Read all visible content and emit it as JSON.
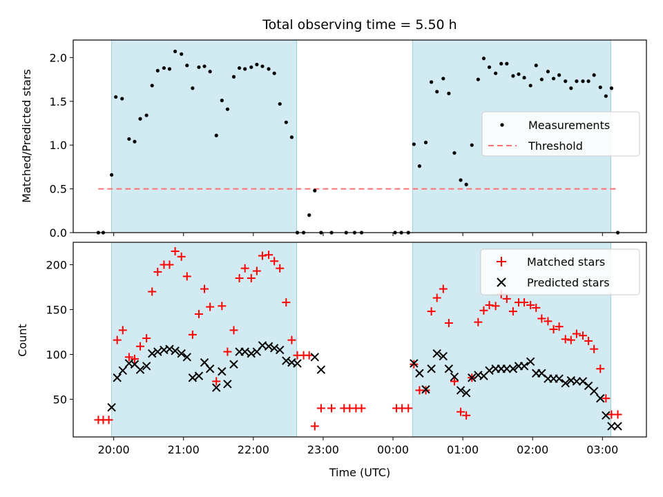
{
  "chart_data": [
    {
      "type": "scatter",
      "panel": "top",
      "title": "Total observing time = 5.50 h",
      "ylabel": "Matched/Predicted stars",
      "xlabel": "",
      "ylim": [
        0,
        2.2
      ],
      "yticks": [
        "0.0",
        "0.5",
        "1.0",
        "1.5",
        "2.0"
      ],
      "ytick_values": [
        0,
        0.5,
        1.0,
        1.5,
        2.0
      ],
      "x_range_hours": [
        19.42,
        27.63
      ],
      "shaded_intervals_hours": [
        [
          19.97,
          22.62
        ],
        [
          24.28,
          27.12
        ]
      ],
      "legend": {
        "placement": "center-right",
        "entries": [
          "Measurements",
          "Threshold"
        ]
      },
      "series": [
        {
          "name": "Measurements",
          "color": "#000000",
          "marker": "dot",
          "x": [
            19.78,
            19.85,
            19.97,
            20.03,
            20.12,
            20.22,
            20.3,
            20.38,
            20.47,
            20.55,
            20.63,
            20.72,
            20.8,
            20.88,
            20.97,
            21.05,
            21.13,
            21.22,
            21.3,
            21.38,
            21.47,
            21.55,
            21.63,
            21.72,
            21.8,
            21.88,
            21.97,
            22.05,
            22.13,
            22.22,
            22.3,
            22.38,
            22.47,
            22.55,
            22.63,
            22.72,
            22.8,
            22.88,
            22.97,
            23.12,
            23.33,
            23.45,
            23.55,
            24.03,
            24.12,
            24.22,
            24.3,
            24.38,
            24.47,
            24.55,
            24.63,
            24.72,
            24.8,
            24.88,
            24.97,
            25.05,
            25.13,
            25.22,
            25.3,
            25.38,
            25.47,
            25.55,
            25.63,
            25.72,
            25.8,
            25.88,
            25.97,
            26.05,
            26.13,
            26.22,
            26.3,
            26.38,
            26.47,
            26.55,
            26.63,
            26.72,
            26.8,
            26.88,
            26.97,
            27.05,
            27.13,
            27.22
          ],
          "y": [
            0.0,
            0.0,
            0.66,
            1.55,
            1.53,
            1.07,
            1.04,
            1.3,
            1.34,
            1.68,
            1.85,
            1.88,
            1.87,
            2.07,
            2.04,
            1.91,
            1.65,
            1.89,
            1.9,
            1.84,
            1.11,
            1.51,
            1.41,
            1.78,
            1.88,
            1.87,
            1.89,
            1.92,
            1.9,
            1.87,
            1.82,
            1.47,
            1.26,
            1.09,
            0.0,
            0.0,
            0.2,
            0.48,
            0.0,
            0.0,
            0.0,
            0.0,
            0.0,
            0.0,
            0.0,
            0.0,
            1.01,
            0.76,
            1.03,
            1.72,
            1.61,
            1.76,
            1.59,
            0.91,
            0.6,
            0.55,
            1.0,
            1.75,
            1.99,
            1.89,
            1.82,
            1.93,
            1.93,
            1.79,
            1.81,
            1.77,
            1.68,
            1.91,
            1.75,
            1.84,
            1.76,
            1.8,
            1.73,
            1.65,
            1.73,
            1.73,
            1.73,
            1.8,
            1.66,
            1.56,
            1.65,
            0.0
          ]
        },
        {
          "name": "Threshold",
          "color": "#ff7070",
          "style": "dashed",
          "x": [
            19.78,
            27.22
          ],
          "y": [
            0.5,
            0.5
          ]
        }
      ]
    },
    {
      "type": "scatter",
      "panel": "bottom",
      "xlabel": "Time (UTC)",
      "ylabel": "Count",
      "ylim": [
        8,
        225
      ],
      "yticks": [
        "50",
        "100",
        "150",
        "200"
      ],
      "ytick_values": [
        50,
        100,
        150,
        200
      ],
      "xticks": [
        "20:00",
        "21:00",
        "22:00",
        "23:00",
        "00:00",
        "01:00",
        "02:00",
        "03:00"
      ],
      "xtick_values": [
        20,
        21,
        22,
        23,
        24,
        25,
        26,
        27
      ],
      "x_range_hours": [
        19.42,
        27.63
      ],
      "shaded_intervals_hours": [
        [
          19.97,
          22.62
        ],
        [
          24.28,
          27.12
        ]
      ],
      "legend": {
        "placement": "top-right",
        "entries": [
          "Matched stars",
          "Predicted stars"
        ]
      },
      "series": [
        {
          "name": "Matched stars",
          "color": "#ff0000",
          "marker": "plus",
          "x": [
            19.78,
            19.85,
            19.93,
            20.05,
            20.13,
            20.22,
            20.3,
            20.38,
            20.47,
            20.55,
            20.63,
            20.72,
            20.8,
            20.88,
            20.97,
            21.05,
            21.13,
            21.22,
            21.3,
            21.38,
            21.47,
            21.55,
            21.63,
            21.72,
            21.8,
            21.88,
            21.97,
            22.05,
            22.13,
            22.22,
            22.3,
            22.38,
            22.47,
            22.55,
            22.63,
            22.72,
            22.8,
            22.88,
            22.97,
            23.12,
            23.3,
            23.38,
            23.47,
            23.55,
            24.05,
            24.13,
            24.22,
            24.3,
            24.38,
            24.47,
            24.55,
            24.63,
            24.72,
            24.8,
            24.88,
            24.97,
            25.05,
            25.13,
            25.22,
            25.3,
            25.38,
            25.47,
            25.55,
            25.63,
            25.72,
            25.8,
            25.88,
            25.97,
            26.05,
            26.13,
            26.22,
            26.3,
            26.38,
            26.47,
            26.55,
            26.63,
            26.72,
            26.8,
            26.88,
            26.97,
            27.05,
            27.13,
            27.22
          ],
          "y": [
            27,
            27,
            27,
            116,
            127,
            97,
            95,
            109,
            118,
            170,
            192,
            200,
            200,
            215,
            209,
            187,
            122,
            145,
            173,
            153,
            70,
            154,
            103,
            127,
            185,
            196,
            185,
            193,
            210,
            211,
            204,
            196,
            158,
            116,
            99,
            99,
            99,
            20,
            40,
            40,
            40,
            40,
            40,
            40,
            40,
            40,
            40,
            89,
            60,
            60,
            148,
            163,
            173,
            135,
            70,
            36,
            32,
            74,
            136,
            149,
            155,
            154,
            167,
            162,
            148,
            158,
            158,
            155,
            152,
            140,
            137,
            128,
            131,
            117,
            116,
            123,
            121,
            115,
            106,
            84,
            51,
            33,
            33
          ]
        },
        {
          "name": "Predicted stars",
          "color": "#000000",
          "marker": "x",
          "x": [
            19.97,
            20.05,
            20.13,
            20.22,
            20.3,
            20.38,
            20.47,
            20.55,
            20.63,
            20.72,
            20.8,
            20.88,
            20.97,
            21.05,
            21.13,
            21.22,
            21.3,
            21.38,
            21.47,
            21.55,
            21.63,
            21.72,
            21.8,
            21.88,
            21.97,
            22.05,
            22.13,
            22.22,
            22.3,
            22.38,
            22.47,
            22.55,
            22.63,
            22.88,
            22.97,
            24.3,
            24.38,
            24.47,
            24.55,
            24.63,
            24.72,
            24.8,
            24.88,
            24.97,
            25.05,
            25.13,
            25.22,
            25.3,
            25.38,
            25.47,
            25.55,
            25.63,
            25.72,
            25.8,
            25.88,
            25.97,
            26.05,
            26.13,
            26.22,
            26.3,
            26.38,
            26.47,
            26.55,
            26.63,
            26.72,
            26.8,
            26.88,
            26.97,
            27.05,
            27.13,
            27.22
          ],
          "y": [
            41,
            74,
            82,
            90,
            89,
            83,
            87,
            101,
            103,
            105,
            106,
            104,
            101,
            97,
            74,
            76,
            91,
            84,
            63,
            81,
            67,
            89,
            103,
            103,
            101,
            103,
            110,
            109,
            107,
            105,
            93,
            91,
            90,
            97,
            83,
            90,
            79,
            61,
            84,
            101,
            98,
            84,
            75,
            60,
            57,
            74,
            77,
            76,
            82,
            84,
            84,
            84,
            84,
            87,
            87,
            92,
            79,
            79,
            73,
            73,
            73,
            68,
            71,
            70,
            70,
            65,
            59,
            51,
            32,
            20,
            20
          ]
        }
      ]
    }
  ]
}
